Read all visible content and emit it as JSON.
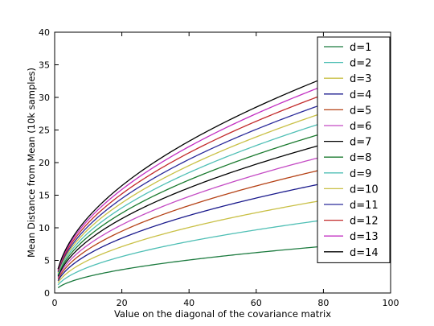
{
  "chart_data": {
    "type": "line",
    "xlabel": "Value on the diagonal of the covariance matrix",
    "ylabel": "Mean Distance from Mean (10k samples)",
    "xlim": [
      0,
      100
    ],
    "ylim": [
      0,
      40
    ],
    "xticks": [
      0,
      20,
      40,
      60,
      80,
      100
    ],
    "yticks": [
      0,
      5,
      10,
      15,
      20,
      25,
      30,
      35,
      40
    ],
    "legend_position": "upper right",
    "grid": false,
    "x_range": [
      1,
      80
    ],
    "model": "y = a * sqrt(x)",
    "series": [
      {
        "name": "d=1",
        "color": "#1b7a3e",
        "a": 0.8
      },
      {
        "name": "d=2",
        "color": "#4fbfb5",
        "a": 1.25
      },
      {
        "name": "d=3",
        "color": "#c9c046",
        "a": 1.59
      },
      {
        "name": "d=4",
        "color": "#1a1a8c",
        "a": 1.88
      },
      {
        "name": "d=5",
        "color": "#b54216",
        "a": 2.12
      },
      {
        "name": "d=6",
        "color": "#c44bc4",
        "a": 2.34
      },
      {
        "name": "d=7",
        "color": "#000000",
        "a": 2.55
      },
      {
        "name": "d=8",
        "color": "#1a7a2e",
        "a": 2.74
      },
      {
        "name": "d=9",
        "color": "#4fbfb5",
        "a": 2.92
      },
      {
        "name": "d=10",
        "color": "#c9c046",
        "a": 3.09
      },
      {
        "name": "d=11",
        "color": "#2a2a9a",
        "a": 3.24
      },
      {
        "name": "d=12",
        "color": "#c22a2a",
        "a": 3.4
      },
      {
        "name": "d=13",
        "color": "#c22fc2",
        "a": 3.55
      },
      {
        "name": "d=14",
        "color": "#000000",
        "a": 3.68
      }
    ]
  }
}
